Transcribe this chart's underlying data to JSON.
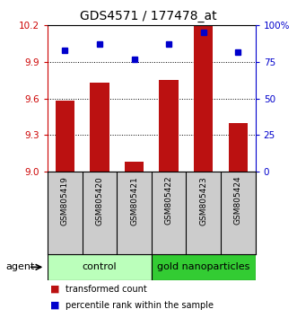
{
  "title": "GDS4571 / 177478_at",
  "categories": [
    "GSM805419",
    "GSM805420",
    "GSM805421",
    "GSM805422",
    "GSM805423",
    "GSM805424"
  ],
  "red_values": [
    9.58,
    9.73,
    9.08,
    9.75,
    10.2,
    9.4
  ],
  "blue_values": [
    83,
    87,
    77,
    87,
    95,
    82
  ],
  "ylim_left": [
    9.0,
    10.2
  ],
  "ylim_right": [
    0,
    100
  ],
  "yticks_left": [
    9.0,
    9.3,
    9.6,
    9.9,
    10.2
  ],
  "yticks_right": [
    0,
    25,
    50,
    75,
    100
  ],
  "ytick_labels_right": [
    "0",
    "25",
    "50",
    "75",
    "100%"
  ],
  "bar_color": "#bb1111",
  "dot_color": "#0000cc",
  "bar_width": 0.55,
  "control_label": "control",
  "treatment_label": "gold nanoparticles",
  "control_color": "#bbffbb",
  "treatment_color": "#33cc33",
  "agent_label": "agent",
  "legend_bar": "transformed count",
  "legend_dot": "percentile rank within the sample",
  "left_axis_color": "#cc0000",
  "right_axis_color": "#0000cc",
  "xlabel_box_color": "#cccccc",
  "fig_width": 3.31,
  "fig_height": 3.54,
  "dpi": 100
}
